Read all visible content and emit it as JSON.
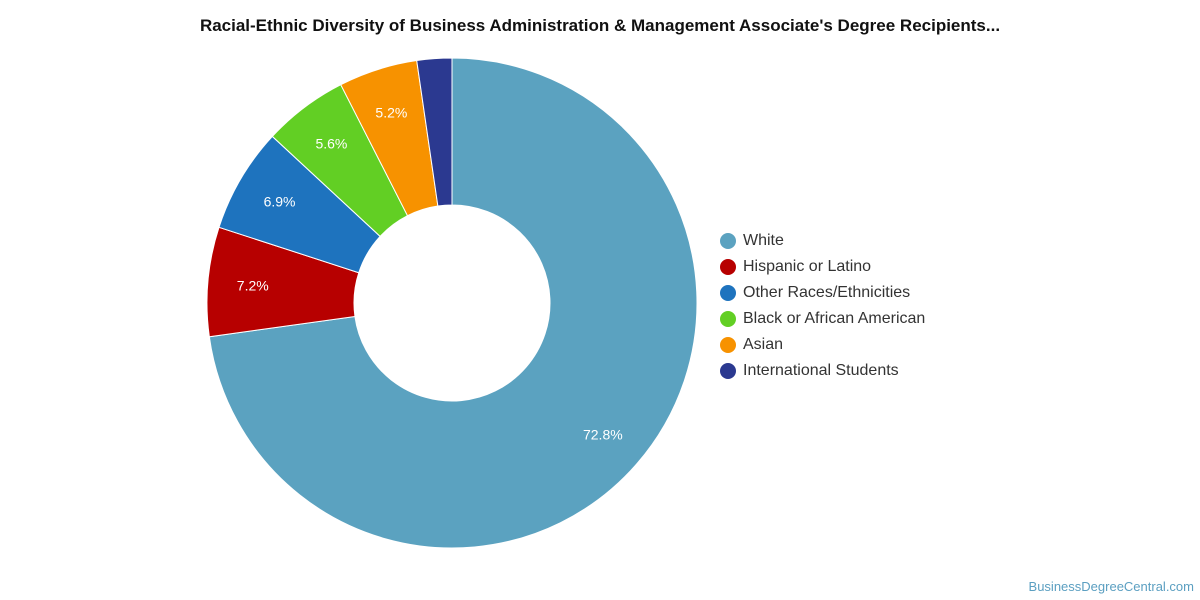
{
  "title": "Racial-Ethnic Diversity of Business Administration & Management Associate's Degree Recipients...",
  "credit": "BusinessDegreeCentral.com",
  "chart_data": {
    "type": "pie",
    "variant": "donut",
    "title": "Racial-Ethnic Diversity of Business Administration & Management Associate's Degree Recipients...",
    "legend_position": "right",
    "slices": [
      {
        "name": "White",
        "value": 72.8,
        "label": "72.8%",
        "color": "#5ba2c0"
      },
      {
        "name": "Hispanic or Latino",
        "value": 7.2,
        "label": "7.2%",
        "color": "#b70000"
      },
      {
        "name": "Other Races/Ethnicities",
        "value": 6.9,
        "label": "6.9%",
        "color": "#1e73be"
      },
      {
        "name": "Black or African American",
        "value": 5.6,
        "label": "5.6%",
        "color": "#62cf24"
      },
      {
        "name": "Asian",
        "value": 5.2,
        "label": "5.2%",
        "color": "#f79200"
      },
      {
        "name": "International Students",
        "value": 2.3,
        "label": "",
        "color": "#2b3990"
      }
    ]
  }
}
